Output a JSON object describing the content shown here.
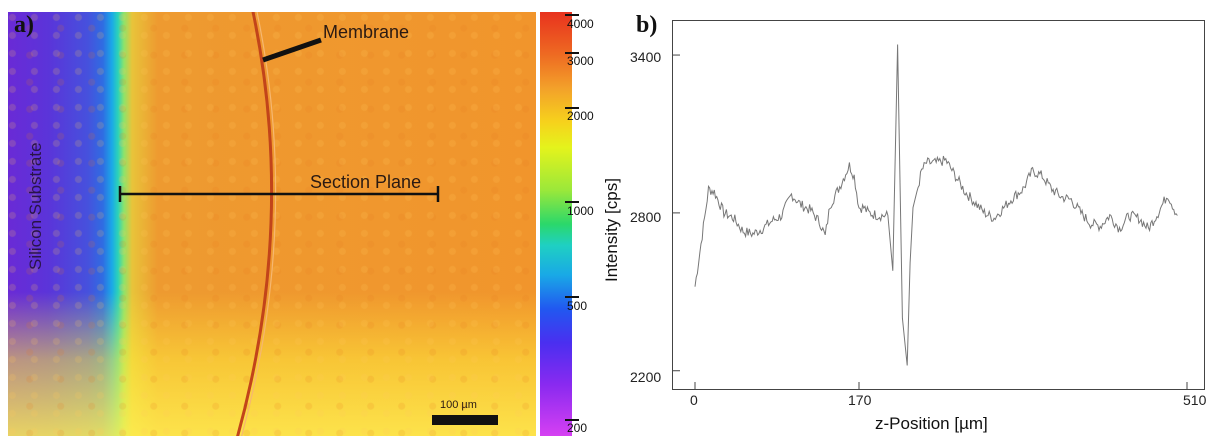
{
  "panel_a": {
    "label": "a)",
    "substrate_label": "Silicon Substrate",
    "membrane_label": "Membrane",
    "section_label": "Section Plane",
    "scalebar_label": "100 µm",
    "colorbar": {
      "ticks": [
        "4000",
        "3000",
        "2000",
        "1000",
        "500",
        "200"
      ],
      "colors": [
        "#e8321e",
        "#f3a12a",
        "#e4f31c",
        "#1fd0c2",
        "#2158f0",
        "#d640f2"
      ]
    }
  },
  "panel_b": {
    "label": "b)"
  },
  "chart_data": {
    "type": "line",
    "xlabel": "z-Position [µm]",
    "ylabel": "Intensity [cps]",
    "xlim": [
      0,
      510
    ],
    "ylim": [
      2180,
      3480
    ],
    "xticks": [
      "0",
      "170",
      "510"
    ],
    "xtick_values": [
      0,
      170,
      510
    ],
    "yticks": [
      "2200",
      "2800",
      "3400"
    ],
    "ytick_values": [
      2200,
      2800,
      3400
    ],
    "grid": false,
    "series": [
      {
        "color": "#777777",
        "x": [
          0,
          5,
          10,
          14,
          20,
          30,
          40,
          50,
          60,
          70,
          80,
          90,
          100,
          110,
          120,
          130,
          135,
          140,
          150,
          160,
          165,
          170,
          175,
          180,
          190,
          200,
          205,
          210,
          215,
          220,
          223,
          226,
          230,
          235,
          240,
          250,
          260,
          270,
          280,
          290,
          300,
          310,
          320,
          330,
          340,
          350,
          360,
          370,
          380,
          390,
          400,
          410,
          420,
          430,
          440,
          450,
          460,
          470,
          480,
          490,
          500
        ],
        "y": [
          2520,
          2650,
          2780,
          2890,
          2880,
          2800,
          2780,
          2730,
          2720,
          2740,
          2770,
          2790,
          2870,
          2830,
          2810,
          2760,
          2710,
          2830,
          2900,
          2980,
          2940,
          2820,
          2820,
          2800,
          2790,
          2790,
          2580,
          3440,
          2400,
          2220,
          2610,
          2820,
          2880,
          2960,
          2990,
          2990,
          3000,
          2940,
          2880,
          2840,
          2800,
          2780,
          2820,
          2860,
          2890,
          2960,
          2940,
          2890,
          2860,
          2850,
          2800,
          2760,
          2750,
          2790,
          2740,
          2790,
          2780,
          2740,
          2800,
          2870,
          2790
        ]
      }
    ]
  }
}
